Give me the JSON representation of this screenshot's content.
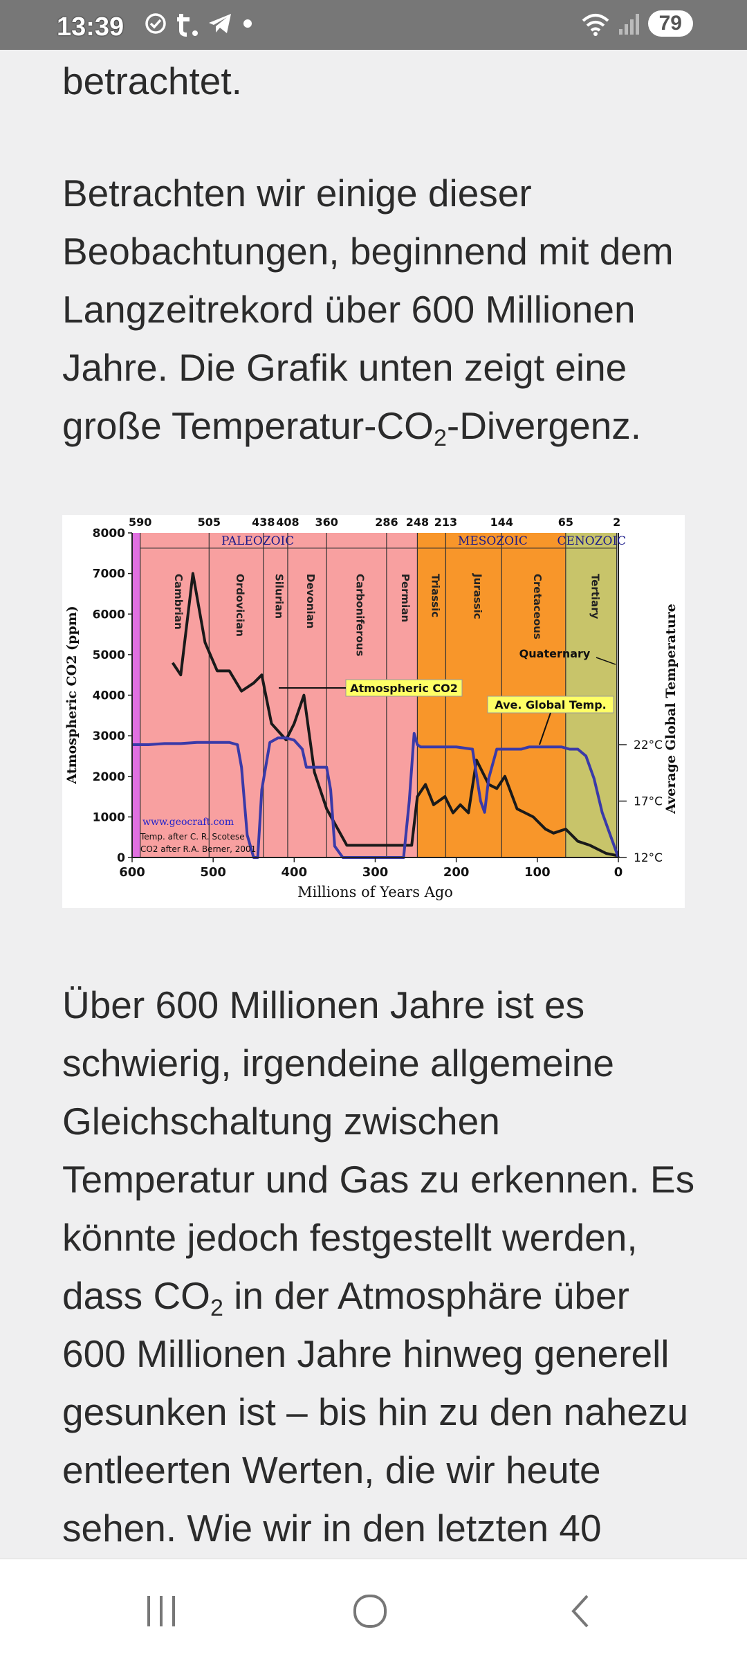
{
  "status_bar": {
    "time": "13:39",
    "battery": "79",
    "left_icons": [
      "check-circle-icon",
      "t-app-icon",
      "telegram-icon",
      "dot-icon"
    ],
    "right_icons": [
      "wifi-icon",
      "signal-icon"
    ]
  },
  "article": {
    "para_top_fragment": "betrachtet.",
    "para1_text": "Betrachten wir einige dieser Beobachtungen, beginnend mit dem Langzeitrekord über 600 Millionen Jahre. Die Grafik unten zeigt eine große Temperatur-CO",
    "para1_sub": "2",
    "para1_tail": "-Divergenz.",
    "para2_text_a": "Über 600 Millionen Jahre ist es schwierig, irgendeine allgemeine Gleichschaltung zwischen Temperatur und Gas zu erkennen. Es könnte jedoch festgestellt werden, dass CO",
    "para2_sub": "2",
    "para2_text_b": " in der Atmosphäre über 600 Millionen Jahre hinweg generell gesunken ist – bis hin zu den nahezu entleerten Werten, die wir heute sehen. Wie wir in den letzten 40"
  },
  "chart_data": {
    "type": "line",
    "xlabel": "Millions of Years Ago",
    "ylabel": "Atmospheric CO2 (ppm)",
    "y2label": "Average Global Temperature",
    "xlim": [
      600,
      0
    ],
    "ylim": [
      0,
      8000
    ],
    "x_ticks": [
      "600",
      "500",
      "400",
      "300",
      "200",
      "100",
      "0"
    ],
    "y_ticks": [
      "0",
      "1000",
      "2000",
      "3000",
      "4000",
      "5000",
      "6000",
      "7000",
      "8000"
    ],
    "y2_ticks": [
      "12°C",
      "17°C",
      "22°C"
    ],
    "top_ticks": [
      "590",
      "505",
      "438",
      "408",
      "360",
      "286",
      "248",
      "213",
      "144",
      "65",
      "2"
    ],
    "eras": [
      "PALEOZOIC",
      "MESOZOIC",
      "CENOZOIC"
    ],
    "periods": [
      "Cambrian",
      "Ordovician",
      "Silurian",
      "Devonian",
      "Carboniferous",
      "Permian",
      "Triassic",
      "Jurassic",
      "Cretaceous",
      "Tertiary"
    ],
    "annotations": {
      "co2_label": "Atmospheric CO2",
      "temp_label": "Ave. Global Temp.",
      "quaternary": "Quaternary",
      "credit_url": "www.geocraft.com",
      "credit_temp": "Temp. after C. R. Scotese",
      "credit_co2": "CO2 after R.A. Berner, 2001"
    },
    "colors": {
      "paleozoic": "#f8a0a0",
      "mesozoic": "#f8962a",
      "cenozoic": "#c8c46a",
      "precambrian": "#e070e0",
      "co2_line": "#1a1a1a",
      "temp_line": "#3a3aa8",
      "label_bg": "#ffff66"
    },
    "series": [
      {
        "name": "Atmospheric CO2",
        "x": [
          550,
          540,
          525,
          510,
          495,
          480,
          465,
          450,
          440,
          428,
          410,
          400,
          388,
          375,
          360,
          335,
          305,
          285,
          270,
          255,
          248,
          238,
          228,
          214,
          204,
          195,
          185,
          175,
          160,
          150,
          140,
          125,
          115,
          105,
          90,
          80,
          65,
          50,
          35,
          15,
          2
        ],
        "values": [
          4800,
          4500,
          7000,
          5300,
          4600,
          4600,
          4100,
          4300,
          4500,
          3300,
          2900,
          3300,
          4000,
          2100,
          1200,
          300,
          300,
          300,
          300,
          300,
          1500,
          1800,
          1300,
          1500,
          1100,
          1300,
          1100,
          2400,
          1800,
          1700,
          2000,
          1200,
          1100,
          1000,
          700,
          600,
          700,
          400,
          300,
          100,
          50
        ]
      },
      {
        "name": "Ave. Global Temp.",
        "x": [
          600,
          580,
          560,
          540,
          520,
          500,
          480,
          470,
          465,
          458,
          450,
          445,
          440,
          430,
          420,
          410,
          400,
          390,
          385,
          370,
          360,
          355,
          350,
          340,
          320,
          300,
          290,
          275,
          265,
          258,
          252,
          248,
          244,
          240,
          230,
          200,
          180,
          170,
          165,
          160,
          150,
          140,
          130,
          120,
          110,
          100,
          90,
          80,
          70,
          60,
          50,
          40,
          30,
          20,
          10,
          0
        ],
        "values": [
          22,
          22,
          22.1,
          22.1,
          22.2,
          22.2,
          22.2,
          22,
          20,
          14,
          12,
          12,
          18,
          22.2,
          22.6,
          22.6,
          22.4,
          21.6,
          20,
          20,
          20,
          18,
          13,
          12,
          12,
          12,
          12,
          12,
          12,
          17,
          23,
          22,
          21.8,
          21.8,
          21.8,
          21.8,
          21.6,
          17,
          16,
          19,
          21.6,
          21.6,
          21.6,
          21.6,
          21.8,
          21.8,
          21.8,
          21.8,
          21.8,
          21.6,
          21.6,
          21,
          19,
          16,
          14,
          12
        ]
      }
    ]
  }
}
